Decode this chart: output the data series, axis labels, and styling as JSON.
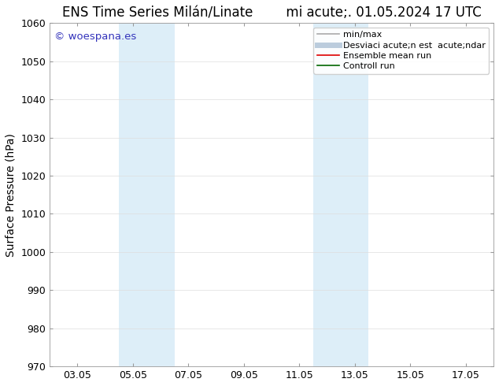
{
  "title_left": "ENS Time Series Milán/Linate",
  "title_right": "mi acute;. 01.05.2024 17 UTC",
  "ylabel": "Surface Pressure (hPa)",
  "watermark": "© woespana.es",
  "watermark_color": "#3333bb",
  "ylim": [
    970,
    1060
  ],
  "yticks": [
    970,
    980,
    990,
    1000,
    1010,
    1020,
    1030,
    1040,
    1050,
    1060
  ],
  "xtick_labels": [
    "03.05",
    "05.05",
    "07.05",
    "09.05",
    "11.05",
    "13.05",
    "15.05",
    "17.05"
  ],
  "xtick_positions": [
    2,
    4,
    6,
    8,
    10,
    12,
    14,
    16
  ],
  "xlim": [
    1,
    17
  ],
  "shaded_bands": [
    {
      "x_start": 3.5,
      "x_end": 5.5,
      "color": "#ddeef8"
    },
    {
      "x_start": 10.5,
      "x_end": 12.5,
      "color": "#ddeef8"
    }
  ],
  "legend_entries": [
    {
      "label": "min/max",
      "color": "#aaaaaa",
      "lw": 1.2,
      "style": "-"
    },
    {
      "label": "Desviaci acute;n est  acute;ndar",
      "color": "#bbccdd",
      "lw": 5,
      "style": "-"
    },
    {
      "label": "Ensemble mean run",
      "color": "#dd0000",
      "lw": 1.2,
      "style": "-"
    },
    {
      "label": "Controll run",
      "color": "#006600",
      "lw": 1.2,
      "style": "-"
    }
  ],
  "bg_color": "#ffffff",
  "plot_bg_color": "#ffffff",
  "title_fontsize": 12,
  "axis_label_fontsize": 10,
  "tick_fontsize": 9,
  "legend_fontsize": 8
}
